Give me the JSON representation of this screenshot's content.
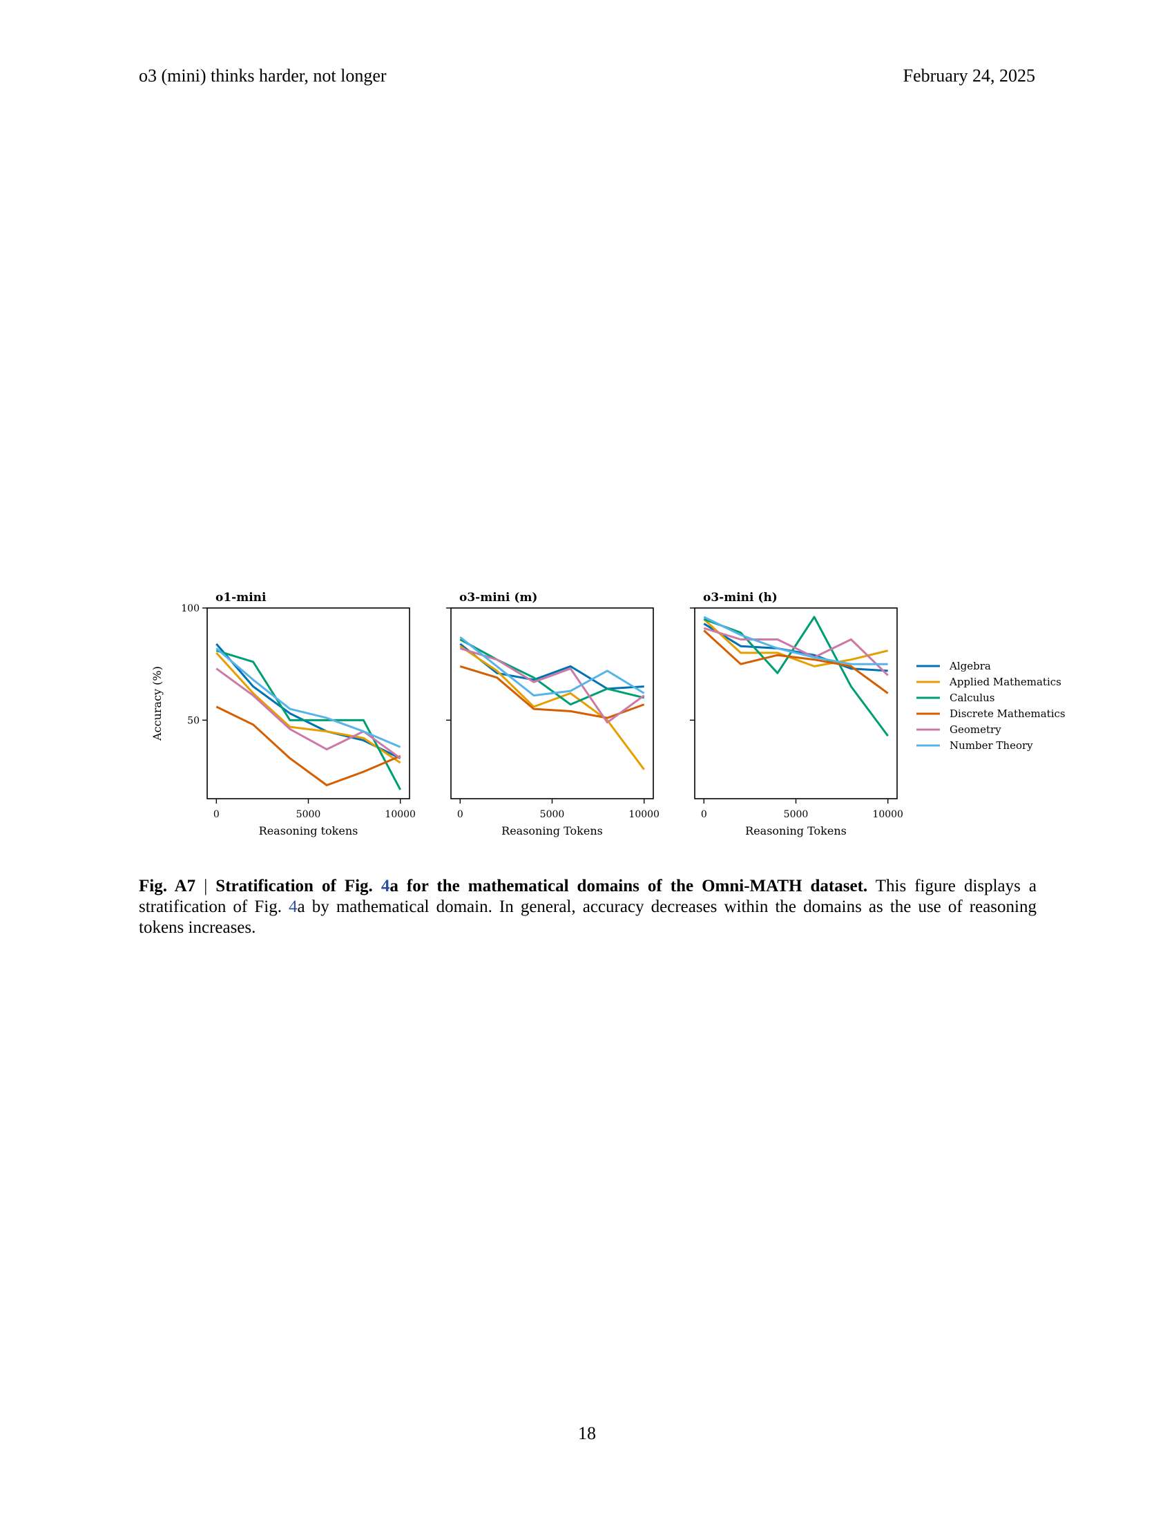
{
  "header": {
    "title": "o3 (mini) thinks harder, not longer",
    "date": "February 24, 2025"
  },
  "caption": {
    "label": "Fig. A7",
    "separator": "|",
    "bold_title_prefix": "Stratification of Fig.",
    "ref": "4",
    "bold_title_suffix": "a for the mathematical domains of the Omni-MATH dataset.",
    "body_part1": "This figure displays a stratification of Fig.",
    "body_ref": "4",
    "body_part2": "a by mathematical domain. In general, accuracy decreases within the domains as the use of reasoning tokens increases."
  },
  "page_number": "18",
  "colors": {
    "Algebra": "#0072b2",
    "Applied Mathematics": "#e69f00",
    "Calculus": "#009e73",
    "Discrete Mathematics": "#d55e00",
    "Geometry": "#cc79a7",
    "Number Theory": "#56b4e9"
  },
  "legend": {
    "placement": "right",
    "entries": [
      "Algebra",
      "Applied Mathematics",
      "Calculus",
      "Discrete Mathematics",
      "Geometry",
      "Number Theory"
    ]
  },
  "chart_data": [
    {
      "type": "line",
      "title": "o1-mini",
      "xlabel": "Reasoning tokens",
      "ylabel": "Accuracy (%)",
      "xlim": [
        -500,
        10500
      ],
      "ylim": [
        15,
        100
      ],
      "xticks": [
        0,
        5000,
        10000
      ],
      "yticks": [
        50,
        100
      ],
      "ytick_labels": [
        "50",
        "100"
      ],
      "grid": false,
      "series": [
        {
          "name": "Algebra",
          "x": [
            0,
            2000,
            4000,
            6000,
            8000,
            10000
          ],
          "y": [
            84,
            65,
            53,
            45,
            41,
            33
          ]
        },
        {
          "name": "Applied Mathematics",
          "x": [
            0,
            2000,
            4000,
            6000,
            8000,
            10000
          ],
          "y": [
            80,
            62,
            47,
            45,
            42,
            31
          ]
        },
        {
          "name": "Calculus",
          "x": [
            0,
            2000,
            4000,
            6000,
            8000,
            10000
          ],
          "y": [
            81,
            76,
            50,
            50,
            50,
            19
          ]
        },
        {
          "name": "Discrete Mathematics",
          "x": [
            0,
            2000,
            4000,
            6000,
            8000,
            10000
          ],
          "y": [
            56,
            48,
            33,
            21,
            27,
            34
          ]
        },
        {
          "name": "Geometry",
          "x": [
            0,
            2000,
            4000,
            6000,
            8000,
            10000
          ],
          "y": [
            73,
            61,
            46,
            37,
            45,
            33
          ]
        },
        {
          "name": "Number Theory",
          "x": [
            0,
            2000,
            4000,
            6000,
            8000,
            10000
          ],
          "y": [
            82,
            68,
            55,
            51,
            45,
            38
          ]
        }
      ]
    },
    {
      "type": "line",
      "title": "o3-mini (m)",
      "xlabel": "Reasoning Tokens",
      "ylabel": "",
      "xlim": [
        -500,
        10500
      ],
      "ylim": [
        15,
        100
      ],
      "xticks": [
        0,
        5000,
        10000
      ],
      "yticks": [
        50,
        100
      ],
      "ytick_labels": [
        "",
        ""
      ],
      "grid": false,
      "series": [
        {
          "name": "Algebra",
          "x": [
            0,
            2000,
            4000,
            6000,
            8000,
            10000
          ],
          "y": [
            84,
            71,
            68,
            74,
            64,
            65
          ]
        },
        {
          "name": "Applied Mathematics",
          "x": [
            0,
            2000,
            4000,
            6000,
            8000,
            10000
          ],
          "y": [
            83,
            72,
            56,
            62,
            50,
            28
          ]
        },
        {
          "name": "Calculus",
          "x": [
            0,
            2000,
            4000,
            6000,
            8000,
            10000
          ],
          "y": [
            86,
            77,
            69,
            57,
            64,
            60
          ]
        },
        {
          "name": "Discrete Mathematics",
          "x": [
            0,
            2000,
            4000,
            6000,
            8000,
            10000
          ],
          "y": [
            74,
            69,
            55,
            54,
            51,
            57
          ]
        },
        {
          "name": "Geometry",
          "x": [
            0,
            2000,
            4000,
            6000,
            8000,
            10000
          ],
          "y": [
            82,
            77,
            67,
            73,
            49,
            61
          ]
        },
        {
          "name": "Number Theory",
          "x": [
            0,
            2000,
            4000,
            6000,
            8000,
            10000
          ],
          "y": [
            87,
            74,
            61,
            63,
            72,
            62
          ]
        }
      ]
    },
    {
      "type": "line",
      "title": "o3-mini (h)",
      "xlabel": "Reasoning Tokens",
      "ylabel": "",
      "xlim": [
        -500,
        10500
      ],
      "ylim": [
        15,
        100
      ],
      "xticks": [
        0,
        5000,
        10000
      ],
      "yticks": [
        50,
        100
      ],
      "ytick_labels": [
        "",
        ""
      ],
      "grid": false,
      "series": [
        {
          "name": "Algebra",
          "x": [
            0,
            2000,
            4000,
            6000,
            8000,
            10000
          ],
          "y": [
            93,
            83,
            82,
            79,
            73,
            72
          ]
        },
        {
          "name": "Applied Mathematics",
          "x": [
            0,
            2000,
            4000,
            6000,
            8000,
            10000
          ],
          "y": [
            95,
            80,
            80,
            74,
            77,
            81
          ]
        },
        {
          "name": "Calculus",
          "x": [
            0,
            2000,
            4000,
            6000,
            8000,
            10000
          ],
          "y": [
            95,
            89,
            71,
            96,
            65,
            43
          ]
        },
        {
          "name": "Discrete Mathematics",
          "x": [
            0,
            2000,
            4000,
            6000,
            8000,
            10000
          ],
          "y": [
            90,
            75,
            79,
            77,
            74,
            62
          ]
        },
        {
          "name": "Geometry",
          "x": [
            0,
            2000,
            4000,
            6000,
            8000,
            10000
          ],
          "y": [
            91,
            86,
            86,
            78,
            86,
            70
          ]
        },
        {
          "name": "Number Theory",
          "x": [
            0,
            2000,
            4000,
            6000,
            8000,
            10000
          ],
          "y": [
            96,
            88,
            82,
            78,
            75,
            75
          ]
        }
      ]
    }
  ]
}
